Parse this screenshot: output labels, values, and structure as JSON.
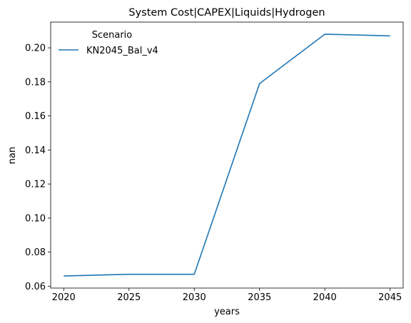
{
  "chart_data": {
    "type": "line",
    "title": "System Cost|CAPEX|Liquids|Hydrogen",
    "xlabel": "years",
    "ylabel": "nan",
    "x": [
      2020,
      2025,
      2030,
      2035,
      2040,
      2045
    ],
    "series": [
      {
        "name": "KN2045_Bal_v4",
        "values": [
          0.066,
          0.067,
          0.067,
          0.179,
          0.208,
          0.207
        ],
        "color": "#1f77b4"
      }
    ],
    "xticks": [
      "2020",
      "2025",
      "2030",
      "2035",
      "2040",
      "2045"
    ],
    "yticks": [
      "0.06",
      "0.08",
      "0.10",
      "0.12",
      "0.14",
      "0.16",
      "0.18",
      "0.20"
    ],
    "xlim": [
      2019,
      2046
    ],
    "ylim": [
      0.0589,
      0.2151
    ],
    "grid": false,
    "legend": {
      "title": "Scenario",
      "placement": "upper-left"
    }
  }
}
